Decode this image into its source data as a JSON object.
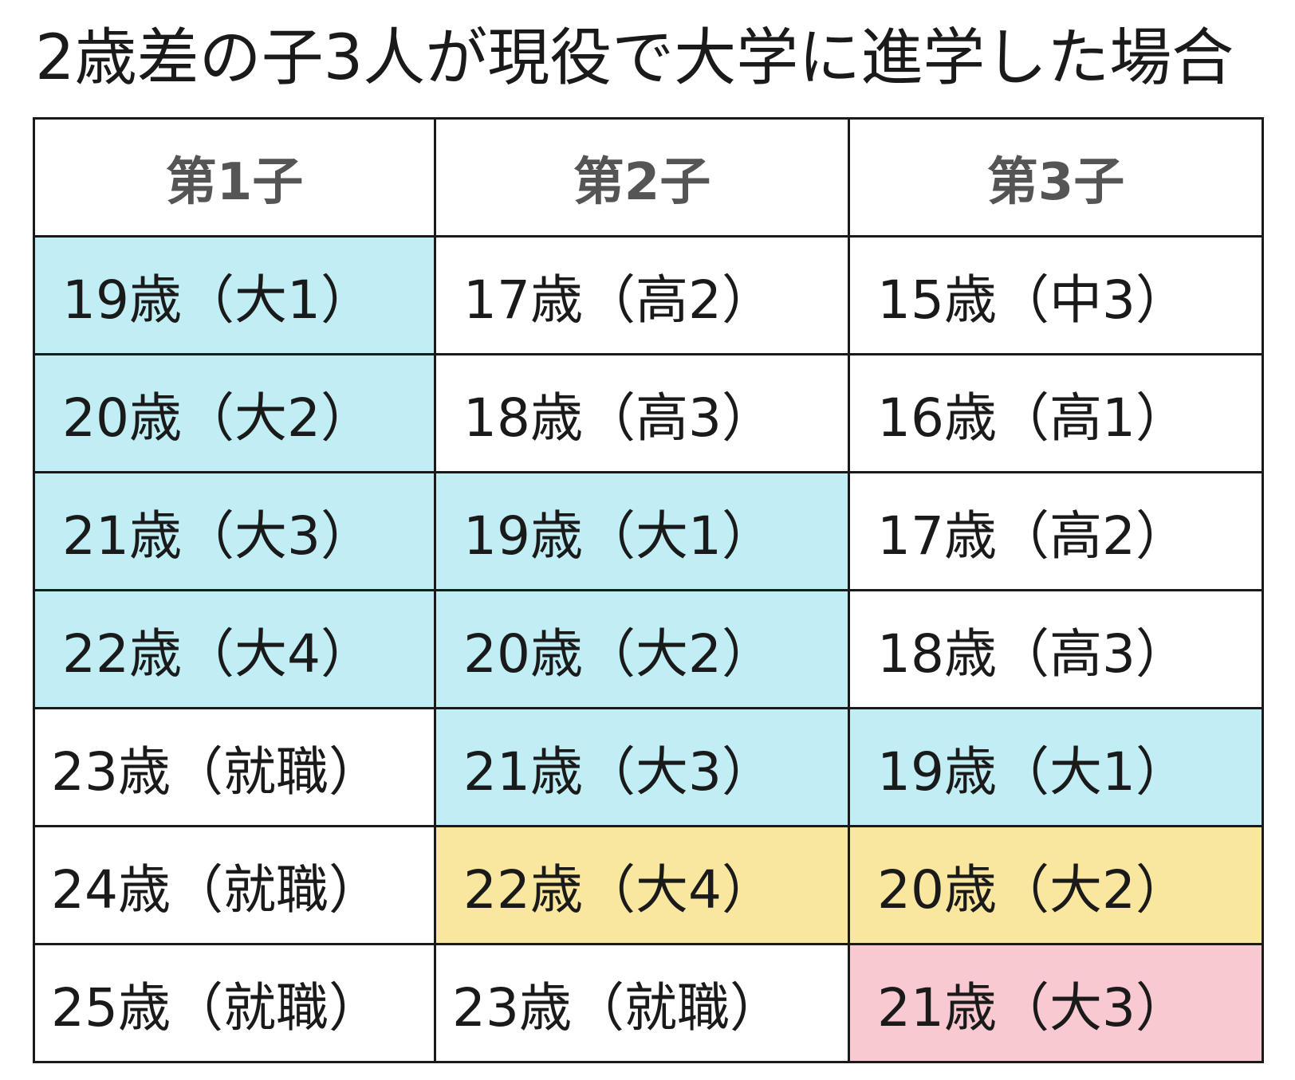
{
  "title": "2歳差の子3人が現役で大学に進学した場合",
  "table": {
    "headers": [
      "第1子",
      "第2子",
      "第3子"
    ],
    "colors": {
      "blue": "#c1eef5",
      "yellow": "#f9e7a0",
      "pink": "#f9c9d1",
      "white": "#ffffff"
    },
    "rows": [
      [
        {
          "text": "19歳（大1）",
          "color": "blue"
        },
        {
          "text": "17歳（高2）",
          "color": "white"
        },
        {
          "text": "15歳（中3）",
          "color": "white"
        }
      ],
      [
        {
          "text": "20歳（大2）",
          "color": "blue"
        },
        {
          "text": "18歳（高3）",
          "color": "white"
        },
        {
          "text": "16歳（高1）",
          "color": "white"
        }
      ],
      [
        {
          "text": "21歳（大3）",
          "color": "blue"
        },
        {
          "text": "19歳（大1）",
          "color": "blue"
        },
        {
          "text": "17歳（高2）",
          "color": "white"
        }
      ],
      [
        {
          "text": "22歳（大4）",
          "color": "blue"
        },
        {
          "text": "20歳（大2）",
          "color": "blue"
        },
        {
          "text": "18歳（高3）",
          "color": "white"
        }
      ],
      [
        {
          "text": "23歳（就職）",
          "color": "white"
        },
        {
          "text": "21歳（大3）",
          "color": "blue"
        },
        {
          "text": "19歳（大1）",
          "color": "blue"
        }
      ],
      [
        {
          "text": "24歳（就職）",
          "color": "white"
        },
        {
          "text": "22歳（大4）",
          "color": "yellow"
        },
        {
          "text": "20歳（大2）",
          "color": "yellow"
        }
      ],
      [
        {
          "text": "25歳（就職）",
          "color": "white"
        },
        {
          "text": "23歳（就職）",
          "color": "white"
        },
        {
          "text": "21歳（大3）",
          "color": "pink"
        }
      ]
    ]
  }
}
